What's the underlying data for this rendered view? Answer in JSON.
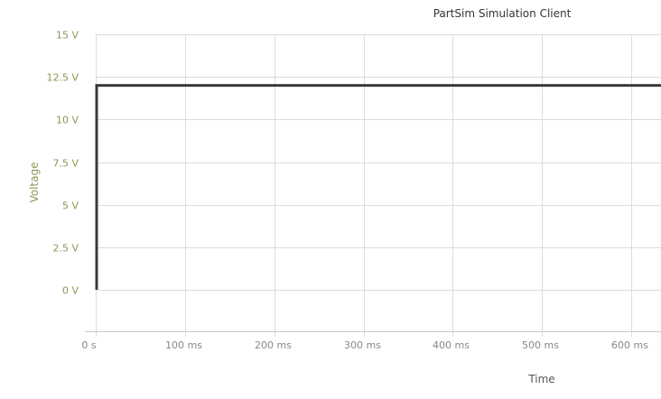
{
  "chart_data": {
    "type": "line",
    "title": "PartSim Simulation Client",
    "xlabel": "Time",
    "ylabel": "Voltage",
    "xlim": [
      0,
      645
    ],
    "ylim": [
      -5,
      15
    ],
    "x_ticks": [
      {
        "value": 0,
        "label": "0 s"
      },
      {
        "value": 100,
        "label": "100 ms"
      },
      {
        "value": 200,
        "label": "200 ms"
      },
      {
        "value": 300,
        "label": "300 ms"
      },
      {
        "value": 400,
        "label": "400 ms"
      },
      {
        "value": 500,
        "label": "500 ms"
      },
      {
        "value": 600,
        "label": "600 ms"
      }
    ],
    "y_ticks": [
      {
        "value": 15,
        "label": "15 V"
      },
      {
        "value": 12.5,
        "label": "12.5 V"
      },
      {
        "value": 10,
        "label": "10 V"
      },
      {
        "value": 7.5,
        "label": "7.5 V"
      },
      {
        "value": 5,
        "label": "5 V"
      },
      {
        "value": 2.5,
        "label": "2.5 V"
      },
      {
        "value": 0,
        "label": "0 V"
      }
    ],
    "grid": true,
    "colors": {
      "series": "#3a3a3a",
      "y_axis_text": "#889955",
      "x_axis_text": "#888888",
      "grid": "#d8dde3"
    },
    "series": [
      {
        "x": [
          1,
          1,
          645
        ],
        "y": [
          0,
          12,
          12
        ]
      }
    ]
  }
}
